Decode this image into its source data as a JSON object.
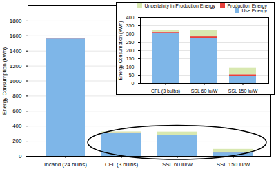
{
  "chart_data": [
    {
      "type": "bar",
      "stacked": true,
      "categories": [
        "Incand (24 bulbs)",
        "CFL (3 bulbs)",
        "SSL 60 lu/W",
        "SSL 150 lu/W"
      ],
      "series": [
        {
          "name": "Use Energy",
          "color": "#7EB6E8",
          "values": [
            1560,
            305,
            275,
            45
          ]
        },
        {
          "name": "Production Energy",
          "color": "#E8413C",
          "values": [
            5,
            8,
            8,
            8
          ]
        },
        {
          "name": "Uncertainty in Production Energy",
          "color": "#D8E8B0",
          "values": [
            0,
            12,
            40,
            40
          ]
        }
      ],
      "ylabel": "Energy Consumption (kWh)",
      "ylim": [
        0,
        2000
      ],
      "yticks": [
        0,
        200,
        400,
        600,
        800,
        1000,
        1200,
        1400,
        1600,
        1800
      ],
      "grid": true
    },
    {
      "type": "bar",
      "stacked": true,
      "categories": [
        "CFL (3 bulbs)",
        "SSL 60 lu/W",
        "SSL 150 lu/W"
      ],
      "series": [
        {
          "name": "Use Energy",
          "color": "#7EB6E8",
          "values": [
            305,
            275,
            45
          ]
        },
        {
          "name": "Production Energy",
          "color": "#E8413C",
          "values": [
            8,
            8,
            8
          ]
        },
        {
          "name": "Uncertainty in Production Energy",
          "color": "#D8E8B0",
          "values": [
            12,
            40,
            40
          ]
        }
      ],
      "ylabel": "Energy Consumption (kWh)",
      "ylim": [
        0,
        400
      ],
      "yticks": [
        0,
        50,
        100,
        150,
        200,
        250,
        300,
        350,
        400
      ],
      "grid": true,
      "legend": "upper right"
    }
  ]
}
